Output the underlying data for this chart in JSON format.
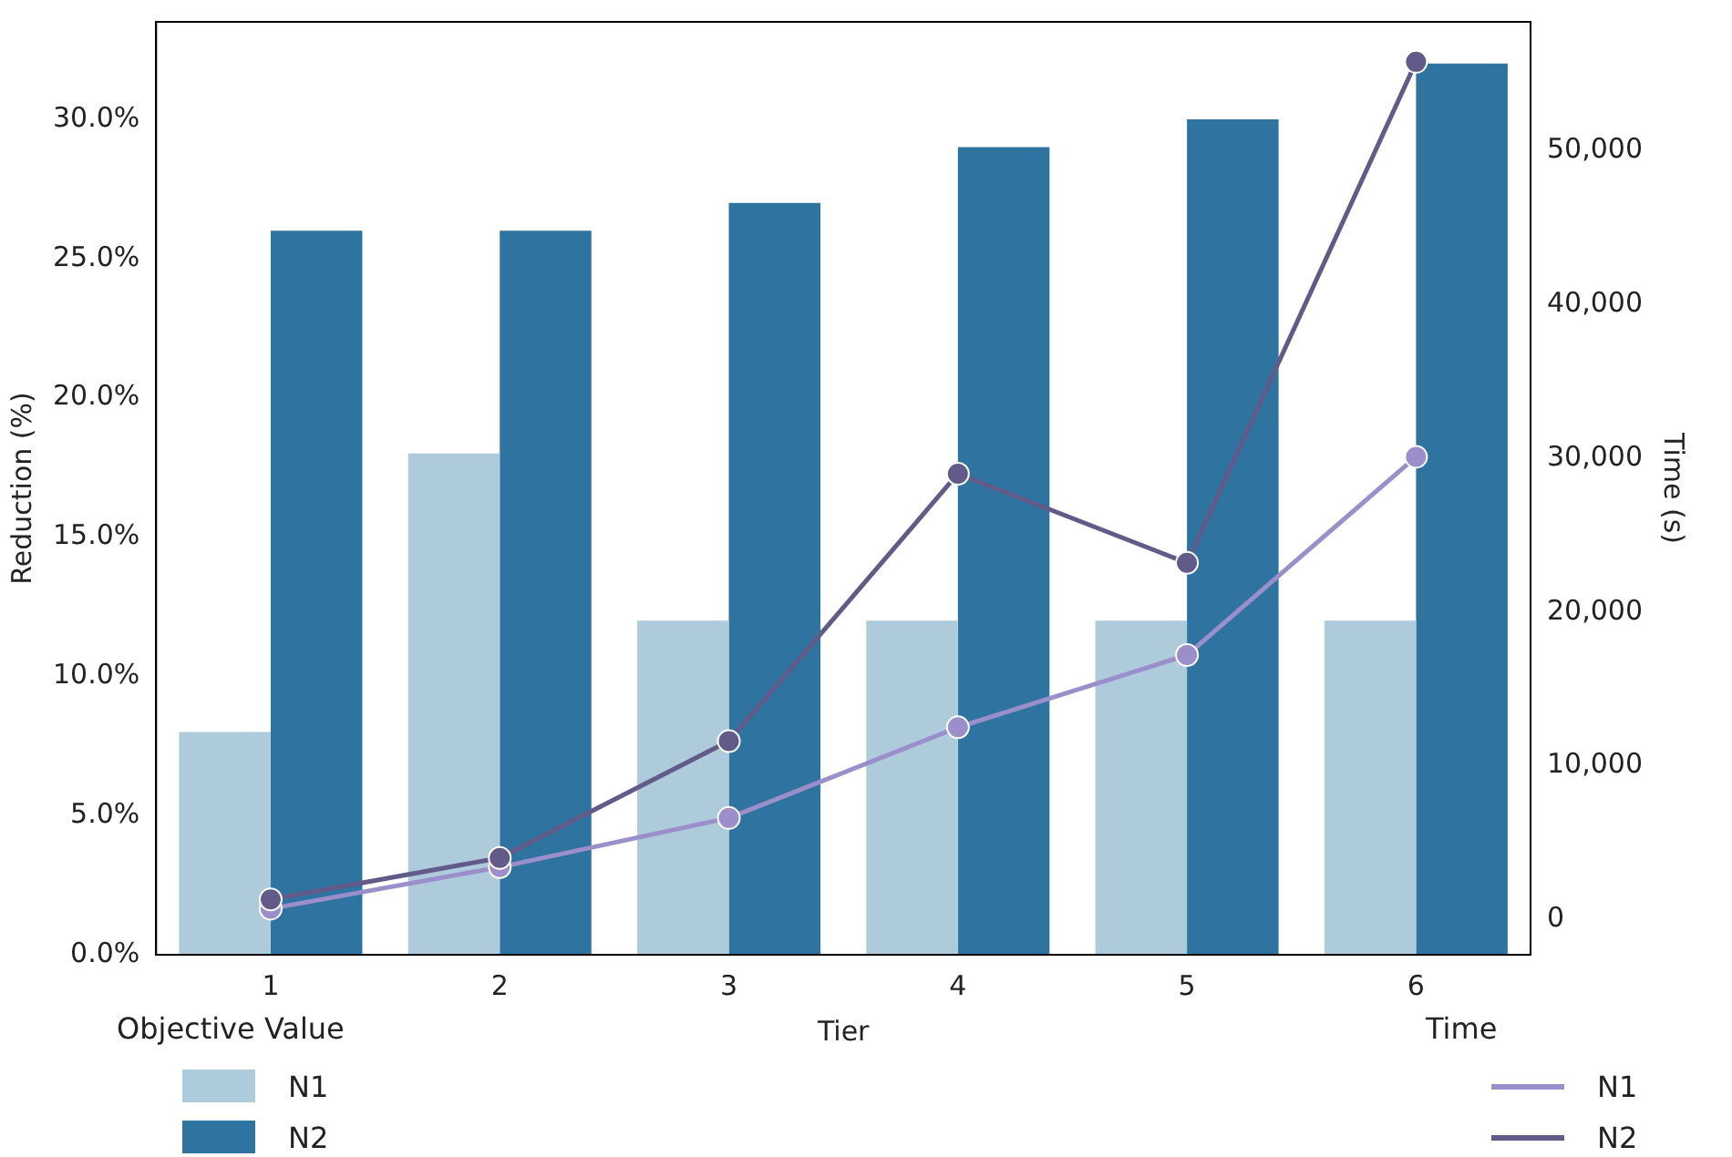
{
  "chart_data": {
    "type": "bar",
    "xlabel": "Tier",
    "ylabel": "Reduction (%)",
    "y2label": "Time (s)",
    "categories": [
      "1",
      "2",
      "3",
      "4",
      "5",
      "6"
    ],
    "series": [
      {
        "name": "N1",
        "color": "#aecbdc",
        "values": [
          8,
          18,
          12,
          12,
          12,
          12
        ]
      },
      {
        "name": "N2",
        "color": "#2f73a0",
        "values": [
          26,
          26,
          27,
          29,
          30,
          32
        ]
      },
      {
        "name": "N1",
        "type": "line",
        "axis": "y2",
        "color": "#9a8fcb",
        "values": [
          700,
          3400,
          6600,
          12500,
          17200,
          30100
        ]
      },
      {
        "name": "N2",
        "type": "line",
        "axis": "y2",
        "color": "#625b8a",
        "values": [
          1300,
          4000,
          11600,
          29000,
          23200,
          55800
        ]
      }
    ],
    "ylim": [
      0,
      33.5
    ],
    "yticks": [
      {
        "value": 0,
        "label": "0.0%"
      },
      {
        "value": 5,
        "label": "5.0%"
      },
      {
        "value": 10,
        "label": "10.0%"
      },
      {
        "value": 15,
        "label": "15.0%"
      },
      {
        "value": 20,
        "label": "20.0%"
      },
      {
        "value": 25,
        "label": "25.0%"
      },
      {
        "value": 30,
        "label": "30.0%"
      }
    ],
    "y2lim": [
      -2300,
      58400
    ],
    "y2ticks": [
      0,
      {
        "value": 10000,
        "label": "10,000"
      },
      {
        "value": 20000,
        "label": "20,000"
      },
      {
        "value": 30000,
        "label": "30,000"
      },
      {
        "value": 40000,
        "label": "40,000"
      },
      {
        "value": 50000,
        "label": "50,000"
      }
    ],
    "legend": "bottom",
    "legend_title": [
      "Objective Value",
      "Time"
    ],
    "marker": "circle",
    "grid": false
  }
}
